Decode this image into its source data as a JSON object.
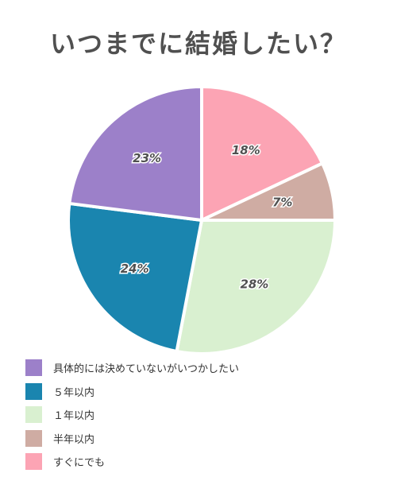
{
  "chart_data": {
    "type": "pie",
    "title": "いつまでに結婚したい？",
    "slices": [
      {
        "label": "すぐにでも",
        "value": 18,
        "display": "18%",
        "color": "#fca4b4"
      },
      {
        "label": "半年以内",
        "value": 7,
        "display": "7%",
        "color": "#cfaca3"
      },
      {
        "label": "１年以内",
        "value": 28,
        "display": "28%",
        "color": "#d9f0d0"
      },
      {
        "label": "５年以内",
        "value": 24,
        "display": "24%",
        "color": "#1a85af"
      },
      {
        "label": "具体的には決めていないがいつかしたい",
        "value": 23,
        "display": "23%",
        "color": "#9c80c9"
      }
    ],
    "legend": {
      "placement": "bottom-left",
      "order": [
        "具体的には決めていないがいつかしたい",
        "５年以内",
        "１年以内",
        "半年以内",
        "すぐにでも"
      ]
    }
  }
}
